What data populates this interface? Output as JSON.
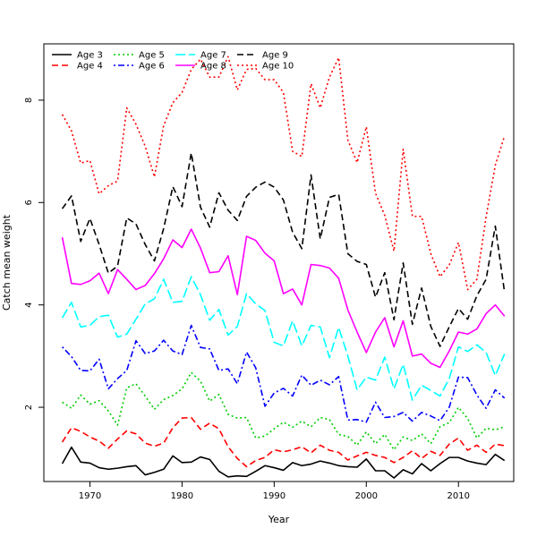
{
  "chart_data": {
    "type": "line",
    "title": "",
    "xlabel": "Year",
    "ylabel": "Catch mean weight",
    "xlim": [
      1965,
      2016
    ],
    "ylim": [
      0.55,
      9.1
    ],
    "x_ticks": [
      1970,
      1980,
      1990,
      2000,
      2010
    ],
    "y_ticks": [
      2,
      4,
      6,
      8
    ],
    "legend_position": "top-left",
    "x": [
      1967,
      1968,
      1969,
      1970,
      1971,
      1972,
      1973,
      1974,
      1975,
      1976,
      1977,
      1978,
      1979,
      1980,
      1981,
      1982,
      1983,
      1984,
      1985,
      1986,
      1987,
      1988,
      1989,
      1990,
      1991,
      1992,
      1993,
      1994,
      1995,
      1996,
      1997,
      1998,
      1999,
      2000,
      2001,
      2002,
      2003,
      2004,
      2005,
      2006,
      2007,
      2008,
      2009,
      2010,
      2011,
      2012,
      2013,
      2014,
      2015
    ],
    "series": [
      {
        "name": "Age 3",
        "color": "#000000",
        "dash": "solid",
        "values": [
          0.9,
          1.22,
          0.93,
          0.91,
          0.82,
          0.79,
          0.81,
          0.84,
          0.86,
          0.68,
          0.73,
          0.79,
          1.05,
          0.92,
          0.93,
          1.03,
          0.98,
          0.75,
          0.64,
          0.66,
          0.65,
          0.75,
          0.86,
          0.82,
          0.77,
          0.92,
          0.86,
          0.89,
          0.95,
          0.91,
          0.86,
          0.84,
          0.83,
          0.99,
          0.76,
          0.76,
          0.62,
          0.78,
          0.7,
          0.9,
          0.76,
          0.9,
          1.02,
          1.02,
          0.95,
          0.91,
          0.88,
          1.08,
          0.96
        ]
      },
      {
        "name": "Age 4",
        "color": "#ff0000",
        "dash": "dashed",
        "values": [
          1.32,
          1.6,
          1.53,
          1.42,
          1.34,
          1.2,
          1.38,
          1.54,
          1.48,
          1.3,
          1.24,
          1.3,
          1.6,
          1.79,
          1.8,
          1.57,
          1.69,
          1.58,
          1.23,
          1.0,
          0.84,
          0.96,
          1.02,
          1.17,
          1.13,
          1.17,
          1.23,
          1.11,
          1.26,
          1.16,
          1.12,
          0.97,
          1.05,
          1.12,
          1.06,
          1.02,
          0.92,
          1.02,
          1.15,
          1.0,
          1.14,
          1.06,
          1.28,
          1.4,
          1.16,
          1.26,
          1.12,
          1.28,
          1.25
        ]
      },
      {
        "name": "Age 5",
        "color": "#00cd00",
        "dash": "dotted",
        "values": [
          2.1,
          1.98,
          2.24,
          2.06,
          2.13,
          1.93,
          1.65,
          2.38,
          2.46,
          2.22,
          1.96,
          2.15,
          2.23,
          2.36,
          2.68,
          2.51,
          2.12,
          2.25,
          1.86,
          1.79,
          1.8,
          1.4,
          1.44,
          1.58,
          1.71,
          1.61,
          1.73,
          1.62,
          1.8,
          1.76,
          1.47,
          1.43,
          1.26,
          1.52,
          1.29,
          1.47,
          1.17,
          1.42,
          1.35,
          1.48,
          1.29,
          1.62,
          1.7,
          2.0,
          1.78,
          1.4,
          1.59,
          1.56,
          1.62
        ]
      },
      {
        "name": "Age 6",
        "color": "#0000ff",
        "dash": "dotdash",
        "values": [
          3.18,
          2.99,
          2.72,
          2.71,
          2.94,
          2.36,
          2.56,
          2.72,
          3.3,
          3.05,
          3.1,
          3.31,
          3.1,
          3.03,
          3.6,
          3.17,
          3.14,
          2.72,
          2.75,
          2.46,
          3.08,
          2.77,
          2.02,
          2.28,
          2.37,
          2.22,
          2.63,
          2.43,
          2.53,
          2.44,
          2.6,
          1.75,
          1.76,
          1.71,
          2.1,
          1.8,
          1.82,
          1.9,
          1.73,
          1.9,
          1.83,
          1.74,
          2.0,
          2.59,
          2.58,
          2.24,
          1.98,
          2.34,
          2.18
        ]
      },
      {
        "name": "Age 7",
        "color": "#00ffff",
        "dash": "longdash",
        "values": [
          3.75,
          4.05,
          3.57,
          3.6,
          3.77,
          3.8,
          3.37,
          3.43,
          3.72,
          4.02,
          4.12,
          4.5,
          4.05,
          4.07,
          4.55,
          4.2,
          3.7,
          3.91,
          3.41,
          3.58,
          4.22,
          4.02,
          3.89,
          3.27,
          3.2,
          3.69,
          3.2,
          3.6,
          3.57,
          2.97,
          3.56,
          3.0,
          2.34,
          2.59,
          2.53,
          2.98,
          2.36,
          2.84,
          2.14,
          2.43,
          2.33,
          2.22,
          2.56,
          3.18,
          3.09,
          3.22,
          3.07,
          2.62,
          3.04
        ]
      },
      {
        "name": "Age 8",
        "color": "#ff00ff",
        "dash": "solid",
        "values": [
          5.32,
          4.42,
          4.4,
          4.47,
          4.62,
          4.22,
          4.69,
          4.5,
          4.3,
          4.38,
          4.61,
          4.9,
          5.27,
          5.12,
          5.48,
          5.11,
          4.63,
          4.65,
          4.96,
          4.2,
          5.34,
          5.26,
          5.01,
          4.86,
          4.22,
          4.31,
          4.0,
          4.79,
          4.77,
          4.72,
          4.52,
          3.9,
          3.47,
          3.07,
          3.47,
          3.75,
          3.18,
          3.69,
          3.0,
          3.04,
          2.86,
          2.78,
          3.1,
          3.47,
          3.43,
          3.53,
          3.83,
          4.0,
          3.78
        ]
      },
      {
        "name": "Age 9",
        "color": "#000000",
        "dash": "dashed",
        "values": [
          5.88,
          6.13,
          5.24,
          5.69,
          5.18,
          4.62,
          4.76,
          5.7,
          5.58,
          5.18,
          4.86,
          5.49,
          6.31,
          5.92,
          6.97,
          5.91,
          5.52,
          6.19,
          5.85,
          5.65,
          6.12,
          6.3,
          6.4,
          6.3,
          6.05,
          5.42,
          5.1,
          6.54,
          5.29,
          6.1,
          6.16,
          5.0,
          4.85,
          4.79,
          4.15,
          4.63,
          3.71,
          4.82,
          3.62,
          4.33,
          3.58,
          3.19,
          3.57,
          3.93,
          3.72,
          4.18,
          4.5,
          5.54,
          4.25
        ]
      },
      {
        "name": "Age 10",
        "color": "#ff0000",
        "dash": "dotted",
        "values": [
          7.72,
          7.4,
          6.77,
          6.82,
          6.17,
          6.33,
          6.42,
          7.85,
          7.53,
          7.1,
          6.5,
          7.5,
          7.95,
          8.15,
          8.6,
          8.8,
          8.45,
          8.45,
          8.85,
          8.2,
          8.6,
          8.62,
          8.4,
          8.4,
          8.15,
          7.0,
          6.9,
          8.32,
          7.85,
          8.45,
          8.83,
          7.22,
          6.78,
          7.48,
          6.18,
          5.75,
          5.05,
          7.04,
          5.73,
          5.73,
          5.0,
          4.55,
          4.78,
          5.22,
          4.3,
          4.5,
          5.72,
          6.73,
          7.3
        ]
      }
    ]
  }
}
